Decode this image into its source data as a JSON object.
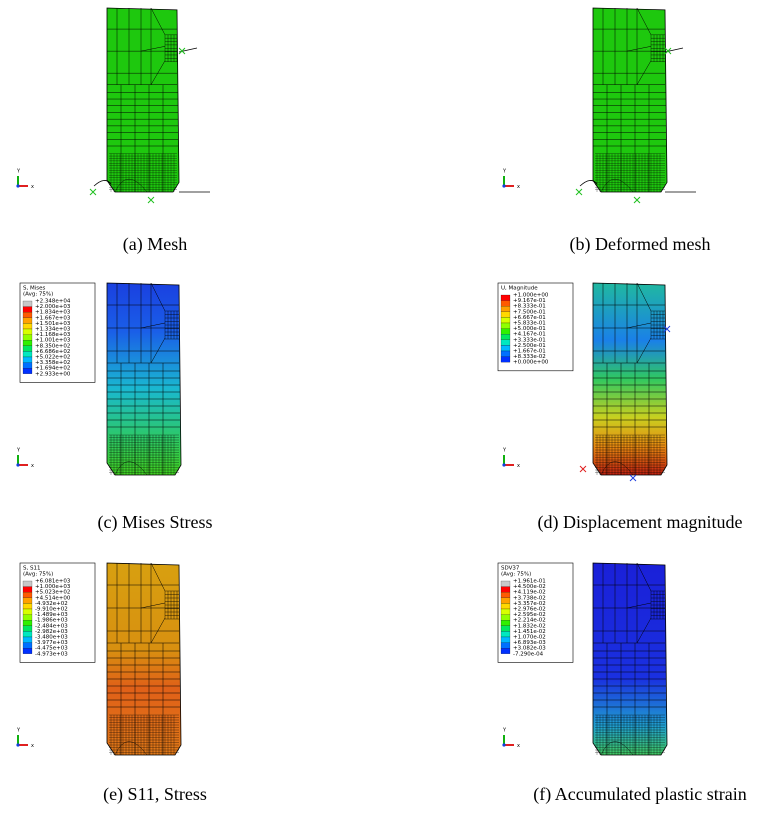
{
  "panels": [
    {
      "caption": "(a)  Mesh",
      "axis": {
        "y": "Y",
        "x": "x"
      }
    },
    {
      "caption": "(b)  Deformed mesh",
      "axis": {
        "y": "Y",
        "x": "x"
      }
    },
    {
      "caption": "(c)  Mises Stress",
      "axis": {
        "y": "Y",
        "x": "x"
      },
      "legend": {
        "title": "S, Mises",
        "subtitle": "(Avg: 75%)",
        "labels": [
          "+2.348e+04",
          "+2.000e+03",
          "+1.834e+03",
          "+1.667e+03",
          "+1.501e+03",
          "+1.334e+03",
          "+1.168e+03",
          "+1.001e+03",
          "+8.350e+02",
          "+6.686e+02",
          "+5.022e+02",
          "+3.358e+02",
          "+1.694e+02",
          "+2.933e+00"
        ]
      }
    },
    {
      "caption": "(d)  Displacement magnitude",
      "axis": {
        "y": "Y",
        "x": "x"
      },
      "legend": {
        "title": "U, Magnitude",
        "labels": [
          "+1.000e+00",
          "+9.167e-01",
          "+8.333e-01",
          "+7.500e-01",
          "+6.667e-01",
          "+5.833e-01",
          "+5.000e-01",
          "+4.167e-01",
          "+3.333e-01",
          "+2.500e-01",
          "+1.667e-01",
          "+8.333e-02",
          "+0.000e+00"
        ]
      }
    },
    {
      "caption": "(e)  S11, Stress",
      "axis": {
        "y": "Y",
        "x": "x"
      },
      "legend": {
        "title": "S, S11",
        "subtitle": "(Avg: 75%)",
        "labels": [
          "+6.081e+03",
          "+1.000e+03",
          "+5.023e+02",
          "+4.514e+00",
          "-4.932e+02",
          "-9.910e+02",
          "-1.489e+03",
          "-1.986e+03",
          "-2.484e+03",
          "-2.982e+03",
          "-3.480e+03",
          "-3.977e+03",
          "-4.475e+03",
          "-4.973e+03"
        ]
      }
    },
    {
      "caption": "(f)  Accumulated plastic strain",
      "axis": {
        "y": "Y",
        "x": "x"
      },
      "legend": {
        "title": "SDV37",
        "subtitle": "(Avg: 75%)",
        "labels": [
          "+1.961e-01",
          "+4.500e-02",
          "+4.119e-02",
          "+3.738e-02",
          "+3.357e-02",
          "+2.976e-02",
          "+2.595e-02",
          "+2.214e-02",
          "+1.832e-02",
          "+1.451e-02",
          "+1.070e-02",
          "+6.893e-03",
          "+3.082e-03",
          "-7.290e-04"
        ]
      }
    }
  ]
}
